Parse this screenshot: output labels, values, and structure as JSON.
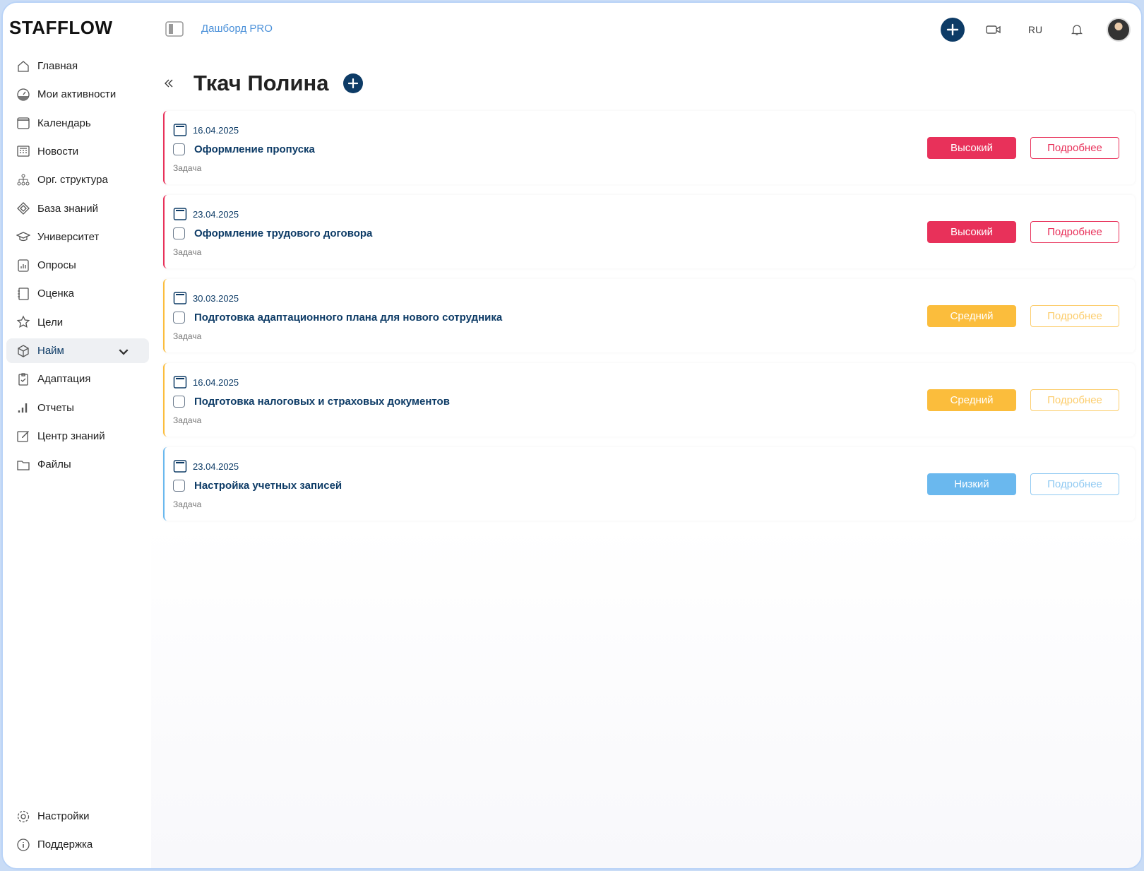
{
  "app": {
    "logo": "STAFFLOW"
  },
  "header": {
    "breadcrumb": "Дашборд PRO",
    "language": "RU"
  },
  "sidebar": {
    "items": [
      {
        "label": "Главная",
        "icon": "home-icon"
      },
      {
        "label": "Мои активности",
        "icon": "gauge-icon"
      },
      {
        "label": "Календарь",
        "icon": "calendar-icon"
      },
      {
        "label": "Новости",
        "icon": "news-icon"
      },
      {
        "label": "Орг. структура",
        "icon": "org-structure-icon"
      },
      {
        "label": "База знаний",
        "icon": "knowledge-base-icon"
      },
      {
        "label": "Университет",
        "icon": "graduation-cap-icon"
      },
      {
        "label": "Опросы",
        "icon": "survey-icon"
      },
      {
        "label": "Оценка",
        "icon": "assessment-icon"
      },
      {
        "label": "Цели",
        "icon": "star-icon"
      },
      {
        "label": "Найм",
        "icon": "box-icon",
        "active": true
      },
      {
        "label": "Адаптация",
        "icon": "clipboard-check-icon"
      },
      {
        "label": "Отчеты",
        "icon": "bar-chart-icon"
      },
      {
        "label": "Центр знаний",
        "icon": "edit-icon"
      },
      {
        "label": "Файлы",
        "icon": "folder-icon"
      }
    ],
    "bottom": [
      {
        "label": "Настройки",
        "icon": "gear-icon"
      },
      {
        "label": "Поддержка",
        "icon": "info-icon"
      }
    ]
  },
  "page": {
    "title": "Ткач Полина"
  },
  "colors": {
    "high": "#e8315a",
    "medium": "#fbbd3c",
    "low": "#6ab8ee",
    "navy": "#0d3b66"
  },
  "tasks": [
    {
      "date": "16.04.2025",
      "title": "Оформление пропуска",
      "type": "Задача",
      "priority": "Высокий",
      "level": "high",
      "details": "Подробнее"
    },
    {
      "date": "23.04.2025",
      "title": "Оформление трудового договора",
      "type": "Задача",
      "priority": "Высокий",
      "level": "high",
      "details": "Подробнее"
    },
    {
      "date": "30.03.2025",
      "title": "Подготовка адаптационного плана для нового сотрудника",
      "type": "Задача",
      "priority": "Средний",
      "level": "medium",
      "details": "Подробнее"
    },
    {
      "date": "16.04.2025",
      "title": "Подготовка налоговых и страховых документов",
      "type": "Задача",
      "priority": "Средний",
      "level": "medium",
      "details": "Подробнее"
    },
    {
      "date": "23.04.2025",
      "title": "Настройка учетных записей",
      "type": "Задача",
      "priority": "Низкий",
      "level": "low",
      "details": "Подробнее"
    }
  ]
}
